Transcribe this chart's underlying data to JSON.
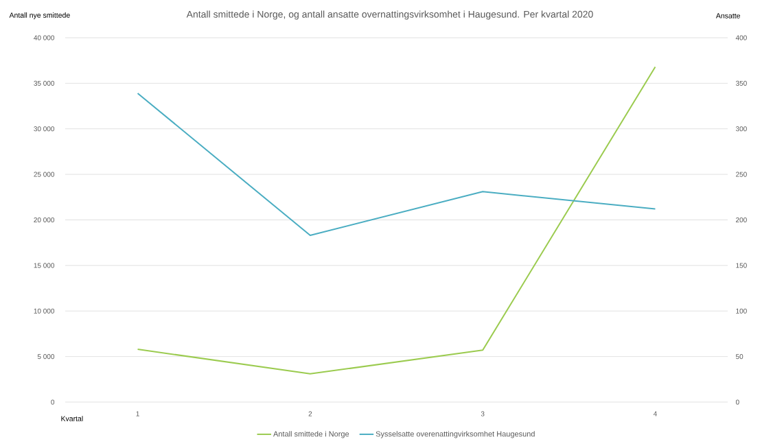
{
  "chart_data": {
    "type": "line",
    "title": "Antall smittede i Norge, og antall ansatte overnattingsvirksomhet i Haugesund. Per kvartal 2020",
    "ylabel": "Antall nye smittede",
    "y2label": "Ansatte",
    "xlabel": "Kvartal",
    "categories": [
      "1",
      "2",
      "3",
      "4"
    ],
    "series": [
      {
        "name": "Antall smittede i Norge",
        "color": "#9bcb4f",
        "values": [
          5800,
          3100,
          5700,
          36800
        ]
      },
      {
        "name": "Sysselsatte overenattingvirksomhet Haugesund",
        "color": "#4aadc2",
        "values": [
          339,
          183,
          231,
          212
        ],
        "axis": "y2"
      }
    ],
    "ylim": [
      0,
      40000
    ],
    "yticks": [
      {
        "value": 0,
        "label": "0"
      },
      {
        "value": 5000,
        "label": "5 000"
      },
      {
        "value": 10000,
        "label": "10 000"
      },
      {
        "value": 15000,
        "label": "15 000"
      },
      {
        "value": 20000,
        "label": "20 000"
      },
      {
        "value": 25000,
        "label": "25 000"
      },
      {
        "value": 30000,
        "label": "30 000"
      },
      {
        "value": 35000,
        "label": "35 000"
      },
      {
        "value": 40000,
        "label": "40 000"
      }
    ],
    "y2lim": [
      0,
      400
    ],
    "y2ticks": [
      0,
      50,
      100,
      150,
      200,
      250,
      300,
      350,
      400
    ],
    "grid": "y",
    "legend": "bottom",
    "line_style": "solid"
  }
}
